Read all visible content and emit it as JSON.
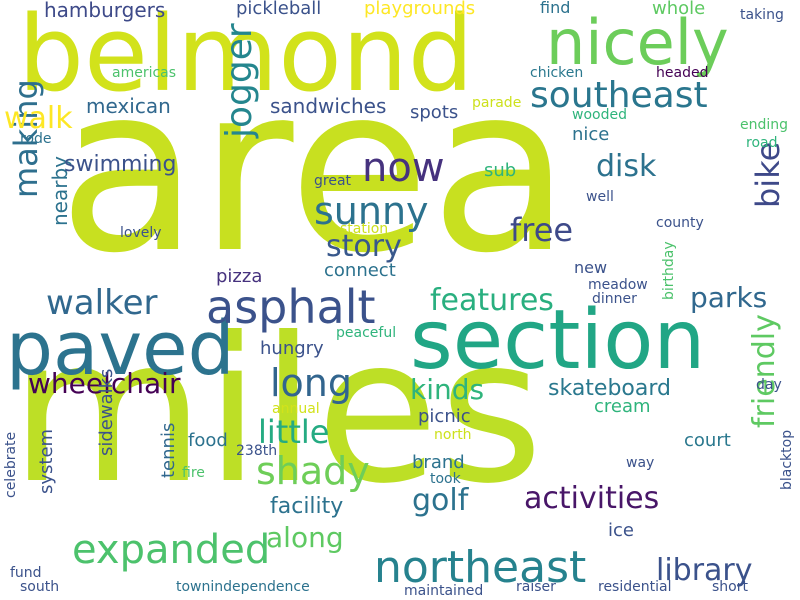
{
  "words": [
    {
      "text": "area",
      "color": "#c8e020"
    },
    {
      "text": "miles",
      "color": "#bddf26"
    },
    {
      "text": "belmond",
      "color": "#d2e21b"
    },
    {
      "text": "section",
      "color": "#21a685"
    },
    {
      "text": "paved",
      "color": "#2c738e"
    },
    {
      "text": "nicely",
      "color": "#6ccd5a"
    },
    {
      "text": "southeast",
      "color": "#2a768e"
    },
    {
      "text": "asphalt",
      "color": "#3b528b"
    },
    {
      "text": "walker",
      "color": "#31688e"
    },
    {
      "text": "sunny",
      "color": "#2c728e"
    },
    {
      "text": "jogger",
      "color": "#24868e"
    },
    {
      "text": "now",
      "color": "#46327e"
    },
    {
      "text": "northeast",
      "color": "#26828e"
    },
    {
      "text": "expanded",
      "color": "#4cc26c"
    },
    {
      "text": "features",
      "color": "#29af7f"
    },
    {
      "text": "activities",
      "color": "#481668"
    },
    {
      "text": "shady",
      "color": "#6ece58"
    },
    {
      "text": "long",
      "color": "#32658e"
    },
    {
      "text": "wheelchair",
      "color": "#440154"
    },
    {
      "text": "making",
      "color": "#2e6f8e"
    },
    {
      "text": "story",
      "color": "#38588c"
    },
    {
      "text": "free",
      "color": "#3e4a89"
    },
    {
      "text": "parks",
      "color": "#31688e"
    },
    {
      "text": "bike",
      "color": "#3e4989"
    },
    {
      "text": "friendly",
      "color": "#5ec962"
    },
    {
      "text": "library",
      "color": "#3b528b"
    },
    {
      "text": "little",
      "color": "#25ab82"
    },
    {
      "text": "kinds",
      "color": "#2fb47c"
    },
    {
      "text": "disk",
      "color": "#2c728e"
    },
    {
      "text": "golf",
      "color": "#2c728e"
    },
    {
      "text": "walk",
      "color": "#fde725"
    },
    {
      "text": "skateboard",
      "color": "#2a788e"
    },
    {
      "text": "along",
      "color": "#5ec962"
    },
    {
      "text": "nearby",
      "color": "#2c728e"
    },
    {
      "text": "swimming",
      "color": "#3b528b"
    },
    {
      "text": "facility",
      "color": "#2c728e"
    },
    {
      "text": "mexican",
      "color": "#31688e"
    },
    {
      "text": "hamburgers",
      "color": "#3e4a89"
    },
    {
      "text": "pickleball",
      "color": "#3b528b"
    },
    {
      "text": "playgrounds",
      "color": "#fde725"
    },
    {
      "text": "sandwiches",
      "color": "#3b528b"
    },
    {
      "text": "spots",
      "color": "#3b528b"
    },
    {
      "text": "connect",
      "color": "#2c728e"
    },
    {
      "text": "pizza",
      "color": "#46327e"
    },
    {
      "text": "hungry",
      "color": "#3b528b"
    },
    {
      "text": "brand",
      "color": "#2c728e"
    },
    {
      "text": "court",
      "color": "#2a788e"
    },
    {
      "text": "picnic",
      "color": "#3b528b"
    },
    {
      "text": "cream",
      "color": "#2fb47c"
    },
    {
      "text": "food",
      "color": "#2c728e"
    },
    {
      "text": "sidewalks",
      "color": "#3b528b"
    },
    {
      "text": "system",
      "color": "#3b528b"
    },
    {
      "text": "tennis",
      "color": "#31688e"
    },
    {
      "text": "nice",
      "color": "#2c728e"
    },
    {
      "text": "sub",
      "color": "#2fb47c"
    },
    {
      "text": "find",
      "color": "#2c728e"
    },
    {
      "text": "whole",
      "color": "#5ec962"
    },
    {
      "text": "ice",
      "color": "#3b528b"
    },
    {
      "text": "new",
      "color": "#3b528b"
    },
    {
      "text": "took",
      "color": "#2c728e"
    },
    {
      "text": "way",
      "color": "#3b528b"
    },
    {
      "text": "day",
      "color": "#3b528b"
    },
    {
      "text": "taking",
      "color": "#3b528b"
    },
    {
      "text": "headed",
      "color": "#440154"
    },
    {
      "text": "chicken",
      "color": "#2a788e"
    },
    {
      "text": "americas",
      "color": "#4cc26c"
    },
    {
      "text": "parade",
      "color": "#cde11d"
    },
    {
      "text": "wooded",
      "color": "#2fb47c"
    },
    {
      "text": "rode",
      "color": "#2c728e"
    },
    {
      "text": "great",
      "color": "#3b528b"
    },
    {
      "text": "station",
      "color": "#cde11d"
    },
    {
      "text": "lovely",
      "color": "#3b528b"
    },
    {
      "text": "well",
      "color": "#3b528b"
    },
    {
      "text": "county",
      "color": "#3b528b"
    },
    {
      "text": "meadow",
      "color": "#3b528b"
    },
    {
      "text": "dinner",
      "color": "#3b528b"
    },
    {
      "text": "peaceful",
      "color": "#2fb47c"
    },
    {
      "text": "birthday",
      "color": "#4cc26c"
    },
    {
      "text": "annual",
      "color": "#d2e21b"
    },
    {
      "text": "north",
      "color": "#cde11d"
    },
    {
      "text": "238th",
      "color": "#3b528b"
    },
    {
      "text": "fire",
      "color": "#4cc26c"
    },
    {
      "text": "celebrate",
      "color": "#3b528b"
    },
    {
      "text": "ending",
      "color": "#4cc26c"
    },
    {
      "text": "road",
      "color": "#2fb47c"
    },
    {
      "text": "blacktop",
      "color": "#3b528b"
    },
    {
      "text": "fund",
      "color": "#3b528b"
    },
    {
      "text": "south",
      "color": "#3b528b"
    },
    {
      "text": "townindependence",
      "color": "#2c728e"
    },
    {
      "text": "maintained",
      "color": "#3b528b"
    },
    {
      "text": "raiser",
      "color": "#3b528b"
    },
    {
      "text": "residential",
      "color": "#3b528b"
    },
    {
      "text": "short",
      "color": "#3b528b"
    }
  ]
}
